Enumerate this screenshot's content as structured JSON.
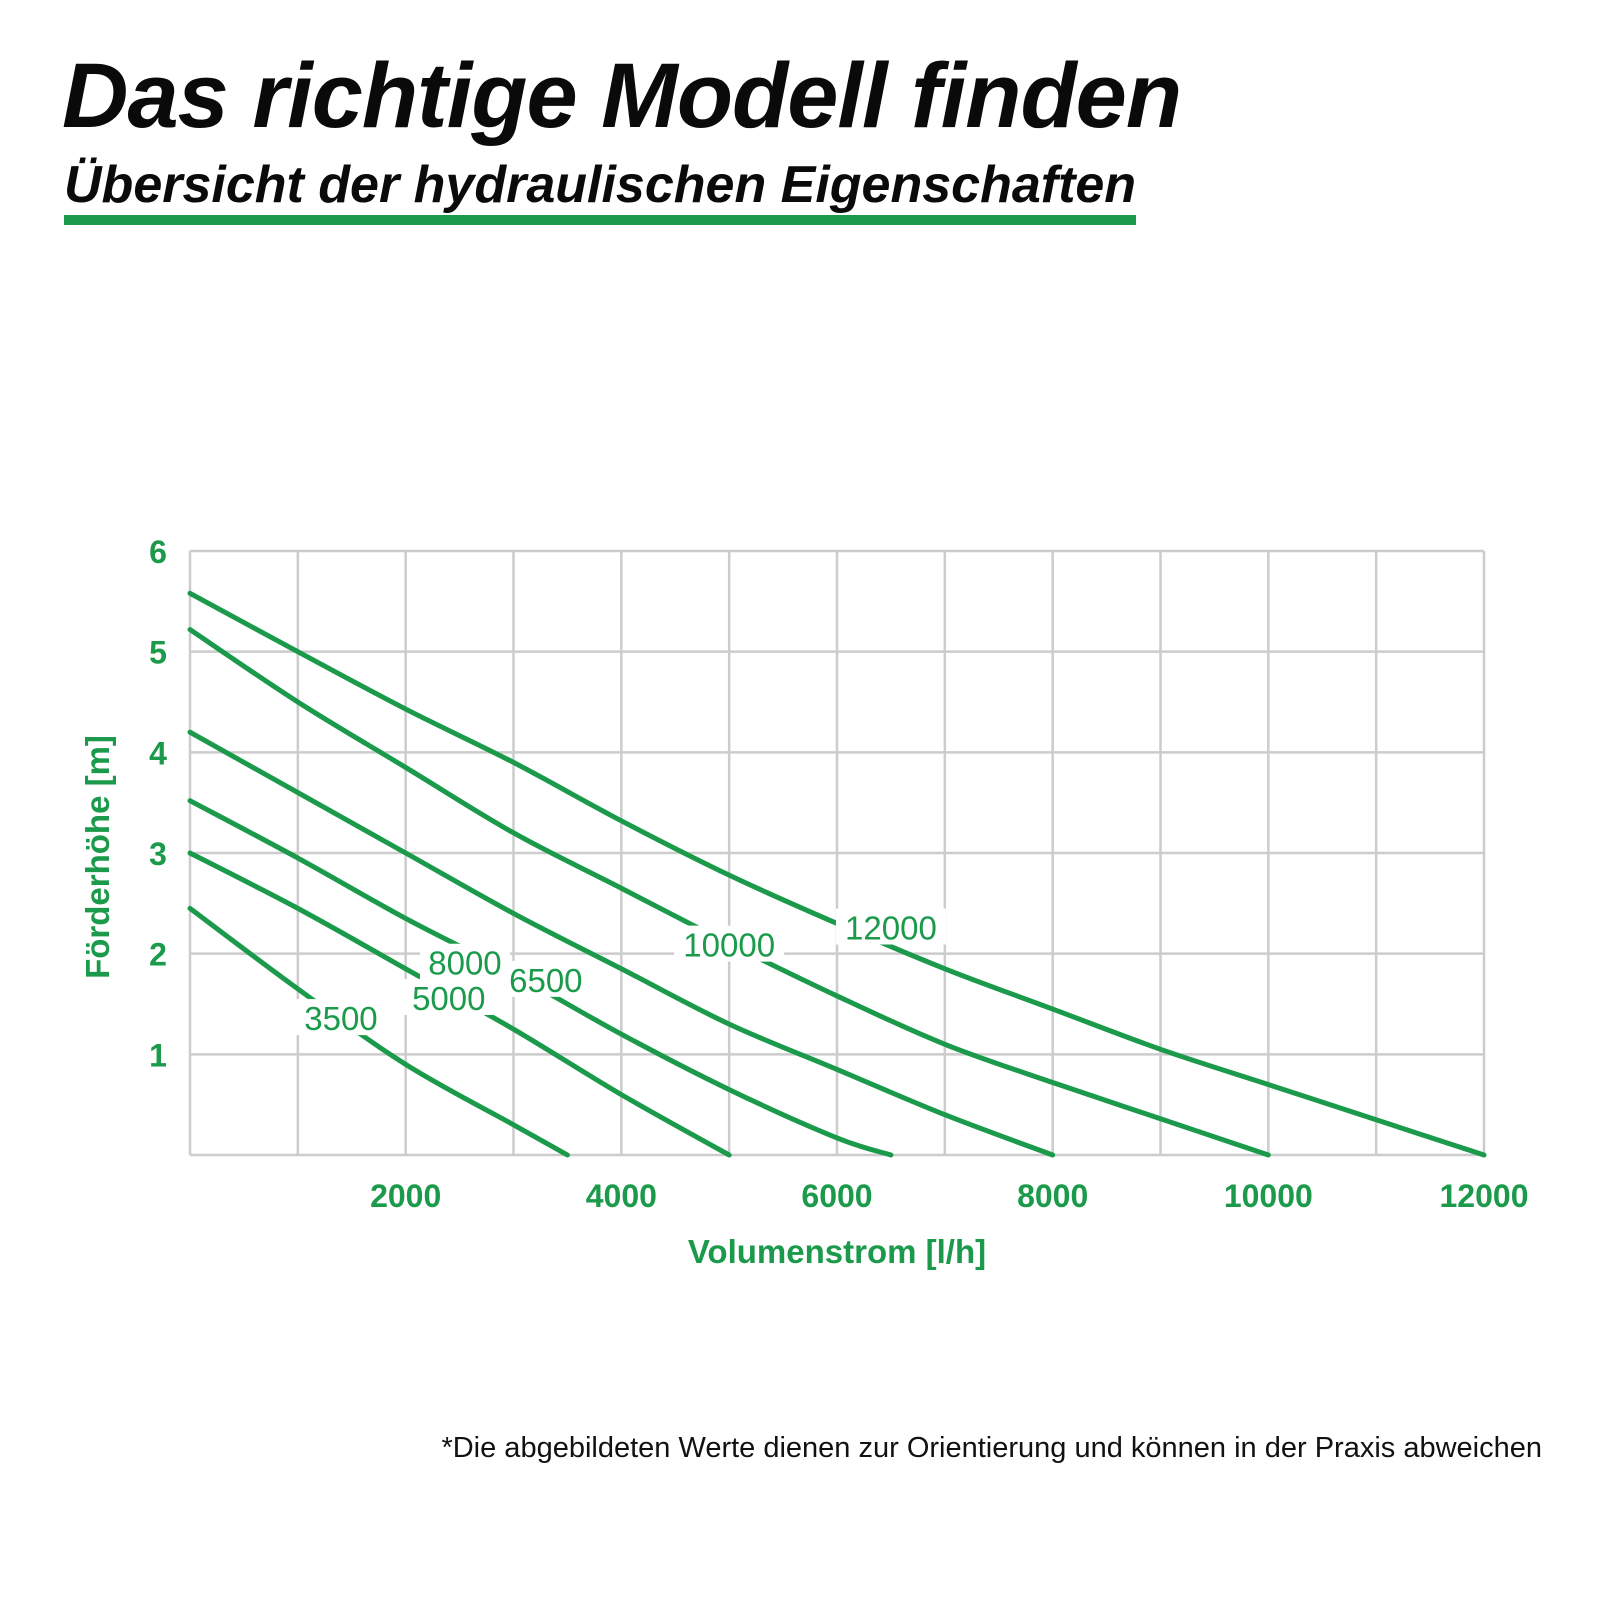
{
  "header": {
    "title": "Das richtige Modell finden",
    "subtitle": "Übersicht der hydraulischen Eigenschaften"
  },
  "footnote": "*Die abgebildeten Werte dienen zur Orientierung und können in der Praxis abweichen",
  "colors": {
    "accent": "#1a9a4a",
    "grid": "#cccccc",
    "text": "#0a0a0a"
  },
  "chart_data": {
    "type": "line",
    "title": "",
    "xlabel": "Volumenstrom [l/h]",
    "ylabel": "Förderhöhe [m]",
    "xlim": [
      0,
      12000
    ],
    "ylim": [
      0,
      6
    ],
    "x_grid_step": 1000,
    "y_grid_step": 1,
    "x_tick_labels": [
      "2000",
      "4000",
      "6000",
      "8000",
      "10000",
      "12000"
    ],
    "y_tick_labels": [
      "1",
      "2",
      "3",
      "4",
      "5",
      "6"
    ],
    "grid": true,
    "legend": "inline labels on curves",
    "series": [
      {
        "name": "3500",
        "points": [
          [
            0,
            2.45
          ],
          [
            1000,
            1.65
          ],
          [
            2000,
            0.9
          ],
          [
            3000,
            0.3
          ],
          [
            3500,
            0
          ]
        ],
        "label_at": [
          1400,
          1.35
        ]
      },
      {
        "name": "5000",
        "points": [
          [
            0,
            3.0
          ],
          [
            1000,
            2.45
          ],
          [
            2000,
            1.85
          ],
          [
            3000,
            1.25
          ],
          [
            4000,
            0.6
          ],
          [
            5000,
            0
          ]
        ],
        "label_at": [
          2400,
          1.55
        ]
      },
      {
        "name": "6500",
        "points": [
          [
            0,
            3.52
          ],
          [
            1000,
            2.95
          ],
          [
            2000,
            2.35
          ],
          [
            3000,
            1.8
          ],
          [
            4000,
            1.2
          ],
          [
            5000,
            0.65
          ],
          [
            6000,
            0.17
          ],
          [
            6500,
            0
          ]
        ],
        "label_at": [
          3300,
          1.73
        ]
      },
      {
        "name": "8000",
        "points": [
          [
            0,
            4.2
          ],
          [
            1000,
            3.6
          ],
          [
            2000,
            3.0
          ],
          [
            3000,
            2.4
          ],
          [
            4000,
            1.85
          ],
          [
            5000,
            1.3
          ],
          [
            6000,
            0.85
          ],
          [
            7000,
            0.4
          ],
          [
            8000,
            0
          ]
        ],
        "label_at": [
          2550,
          1.9
        ]
      },
      {
        "name": "10000",
        "points": [
          [
            0,
            5.22
          ],
          [
            1000,
            4.5
          ],
          [
            2000,
            3.85
          ],
          [
            3000,
            3.2
          ],
          [
            4000,
            2.65
          ],
          [
            5000,
            2.1
          ],
          [
            6000,
            1.58
          ],
          [
            7000,
            1.1
          ],
          [
            8000,
            0.72
          ],
          [
            9000,
            0.36
          ],
          [
            10000,
            0
          ]
        ],
        "label_at": [
          5000,
          2.08
        ]
      },
      {
        "name": "12000",
        "points": [
          [
            0,
            5.58
          ],
          [
            1000,
            5.0
          ],
          [
            2000,
            4.43
          ],
          [
            3000,
            3.9
          ],
          [
            4000,
            3.32
          ],
          [
            5000,
            2.78
          ],
          [
            6000,
            2.3
          ],
          [
            7000,
            1.85
          ],
          [
            8000,
            1.45
          ],
          [
            9000,
            1.05
          ],
          [
            10000,
            0.7
          ],
          [
            11000,
            0.35
          ],
          [
            12000,
            0
          ]
        ],
        "label_at": [
          6500,
          2.25
        ]
      }
    ]
  }
}
